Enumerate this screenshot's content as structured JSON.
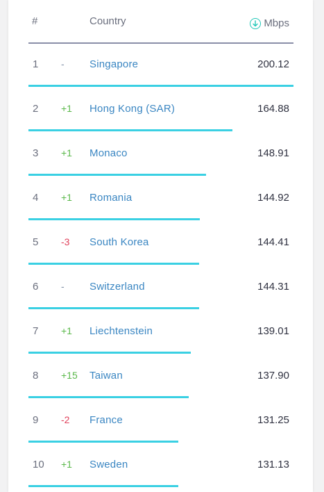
{
  "header": {
    "rank": "#",
    "country": "Country",
    "unit": "Mbps",
    "unit_icon": "download-circle-icon"
  },
  "colors": {
    "bar": "#3ad0e3",
    "up": "#5ab84a",
    "down": "#e0405a",
    "link": "#3a86c2"
  },
  "rows": [
    {
      "rank": "1",
      "change": "-",
      "trend": "same",
      "country": "Singapore",
      "speed": "200.12",
      "speed_value": 200.12
    },
    {
      "rank": "2",
      "change": "+1",
      "trend": "up",
      "country": "Hong Kong (SAR)",
      "speed": "164.88",
      "speed_value": 164.88
    },
    {
      "rank": "3",
      "change": "+1",
      "trend": "up",
      "country": "Monaco",
      "speed": "148.91",
      "speed_value": 148.91
    },
    {
      "rank": "4",
      "change": "+1",
      "trend": "up",
      "country": "Romania",
      "speed": "144.92",
      "speed_value": 144.92
    },
    {
      "rank": "5",
      "change": "-3",
      "trend": "down",
      "country": "South Korea",
      "speed": "144.41",
      "speed_value": 144.41
    },
    {
      "rank": "6",
      "change": "-",
      "trend": "same",
      "country": "Switzerland",
      "speed": "144.31",
      "speed_value": 144.31
    },
    {
      "rank": "7",
      "change": "+1",
      "trend": "up",
      "country": "Liechtenstein",
      "speed": "139.01",
      "speed_value": 139.01
    },
    {
      "rank": "8",
      "change": "+15",
      "trend": "up",
      "country": "Taiwan",
      "speed": "137.90",
      "speed_value": 137.9
    },
    {
      "rank": "9",
      "change": "-2",
      "trend": "down",
      "country": "France",
      "speed": "131.25",
      "speed_value": 131.25
    },
    {
      "rank": "10",
      "change": "+1",
      "trend": "up",
      "country": "Sweden",
      "speed": "131.13",
      "speed_value": 131.13
    }
  ]
}
